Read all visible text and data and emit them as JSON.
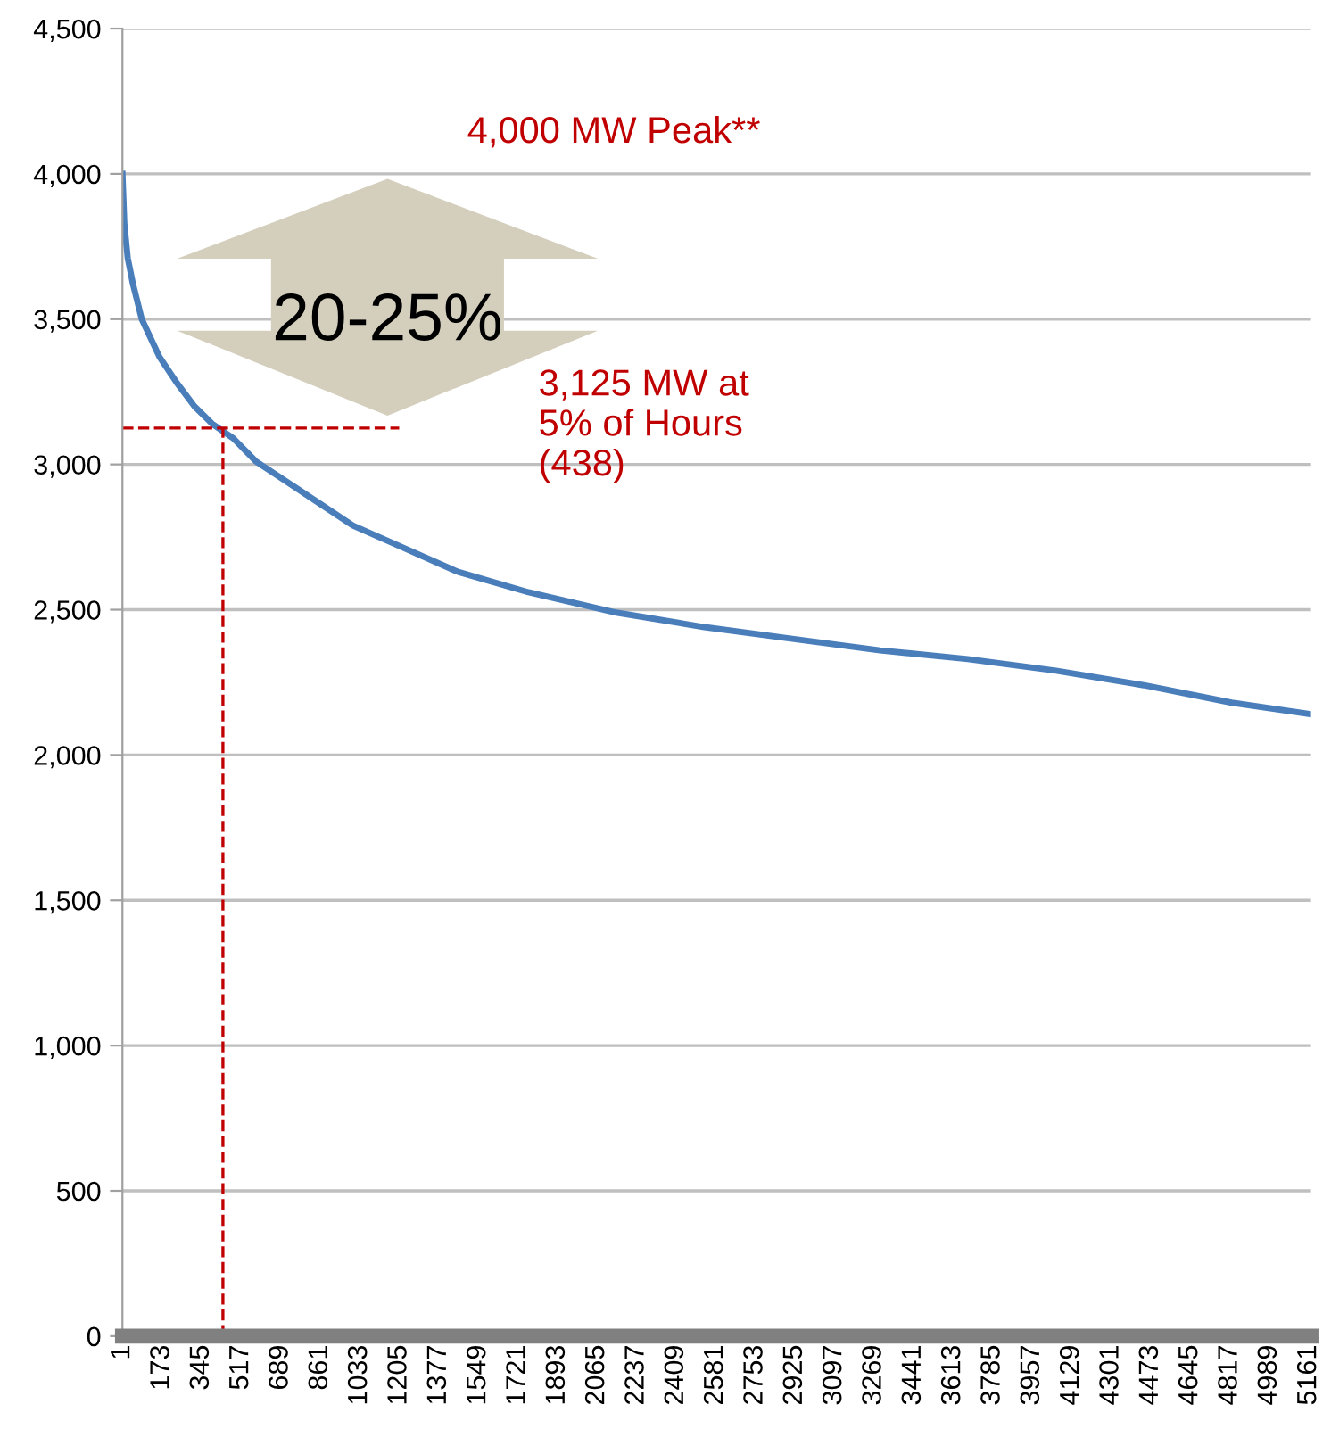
{
  "chart_data": {
    "type": "line",
    "x": [
      1,
      9,
      24,
      47,
      85,
      162,
      238,
      314,
      391,
      483,
      582,
      697,
      850,
      1003,
      1232,
      1461,
      1767,
      2149,
      2532,
      2914,
      3296,
      3678,
      4061,
      4443,
      4825,
      5170
    ],
    "series": [
      {
        "color": "#4a7ebb",
        "values": [
          4000,
          3830,
          3710,
          3620,
          3500,
          3370,
          3280,
          3200,
          3140,
          3090,
          3010,
          2950,
          2870,
          2790,
          2710,
          2630,
          2560,
          2490,
          2440,
          2400,
          2360,
          2330,
          2290,
          2240,
          2180,
          2140
        ]
      }
    ],
    "xlim": [
      1,
      5170
    ],
    "xticks": [
      1,
      173,
      345,
      517,
      689,
      861,
      1033,
      1205,
      1377,
      1549,
      1721,
      1893,
      2065,
      2237,
      2409,
      2581,
      2753,
      2925,
      3097,
      3269,
      3441,
      3613,
      3785,
      3957,
      4129,
      4301,
      4473,
      4645,
      4817,
      4989,
      5161
    ],
    "ylim": [
      0,
      4500
    ],
    "yticks": [
      0,
      {
        "value": 500,
        "label": "500"
      },
      {
        "value": 1000,
        "label": "1,000"
      },
      {
        "value": 1500,
        "label": "1,500"
      },
      {
        "value": 2000,
        "label": "2,000"
      },
      {
        "value": 2500,
        "label": "2,500"
      },
      {
        "value": 3000,
        "label": "3,000"
      },
      {
        "value": 3500,
        "label": "3,500"
      },
      {
        "value": 4000,
        "label": "4,000"
      },
      {
        "value": 4500,
        "label": "4,500"
      }
    ],
    "grid": "y",
    "marker": "none",
    "line_style": "solid",
    "ref_lines": [
      {
        "axis": "x",
        "value": 438,
        "color": "#c00000",
        "line_style": "dashed"
      },
      {
        "axis": "y",
        "value": 3125,
        "color": "#c00000",
        "line_style": "dashed"
      }
    ],
    "annotations": [
      "4,000 MW Peak**",
      "3,125 MW at\n5% of Hours\n(438)",
      "20-25%"
    ]
  }
}
